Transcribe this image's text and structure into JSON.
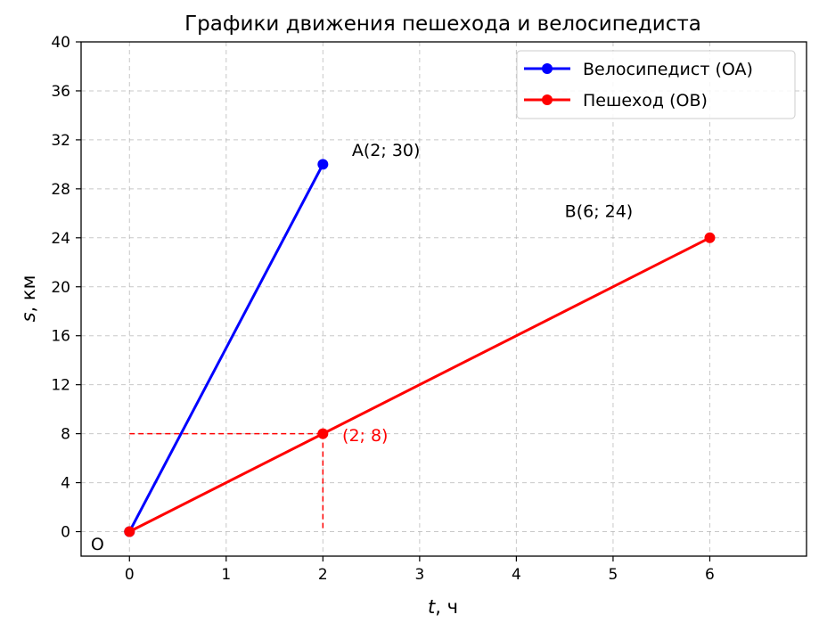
{
  "chart_data": {
    "type": "line",
    "title": "Графики движения пешехода и велосипедиста",
    "xlabel_var": "t",
    "xlabel_unit": ", ч",
    "ylabel_var": "s",
    "ylabel_unit": ", км",
    "xlim": [
      -0.5,
      7
    ],
    "ylim": [
      -2,
      40
    ],
    "xticks": [
      0,
      1,
      2,
      3,
      4,
      5,
      6
    ],
    "yticks": [
      0,
      4,
      8,
      12,
      16,
      20,
      24,
      28,
      32,
      36,
      40
    ],
    "grid": true,
    "legend_position": "top-right",
    "series": [
      {
        "name": "Велосипедист (OA)",
        "color": "#0000ff",
        "points": [
          [
            0,
            0
          ],
          [
            2,
            30
          ]
        ]
      },
      {
        "name": "Пешеход (OB)",
        "color": "#ff0000",
        "points": [
          [
            0,
            0
          ],
          [
            6,
            24
          ]
        ]
      }
    ],
    "guide_point": {
      "x": 2,
      "y": 8,
      "color": "#ff0000"
    },
    "annotations": [
      {
        "text": "A(2; 30)",
        "x": 2.3,
        "y": 30.7,
        "color": "#000000"
      },
      {
        "text": "B(6; 24)",
        "x": 4.5,
        "y": 25.7,
        "color": "#000000"
      },
      {
        "text": "(2; 8)",
        "x": 2.2,
        "y": 7.4,
        "color": "#ff0000"
      },
      {
        "text": "O",
        "x": -0.4,
        "y": -1.5,
        "color": "#000000"
      }
    ]
  }
}
